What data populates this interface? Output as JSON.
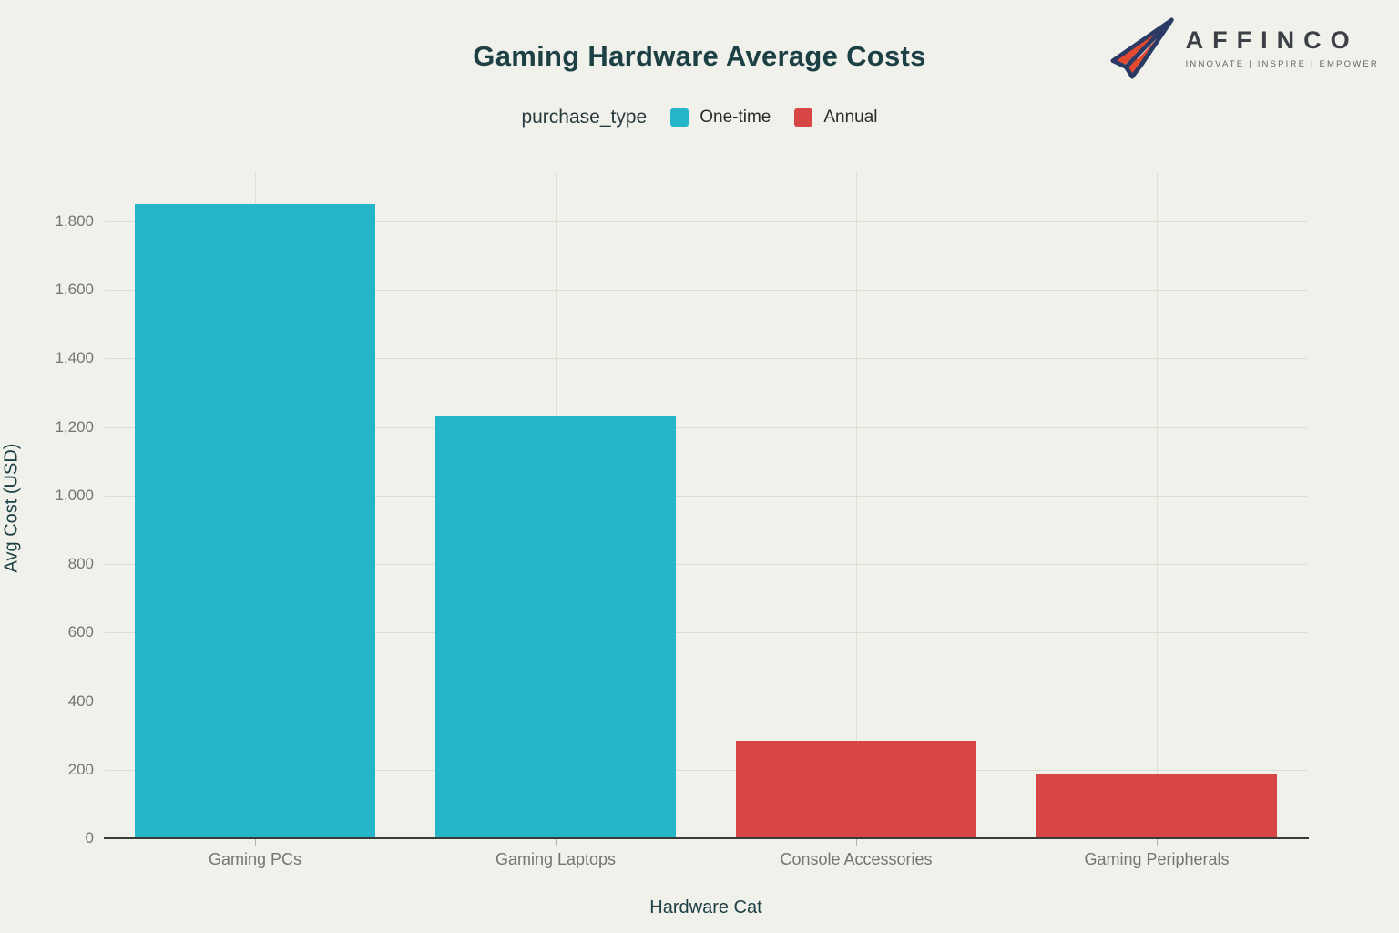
{
  "page": {
    "background": "#f1f1ec"
  },
  "header": {
    "title": "Gaming Hardware Average Costs"
  },
  "logo": {
    "brand": "AFFINCO",
    "tagline": "INNOVATE | INSPIRE | EMPOWER",
    "plane_fill": "#e2492f",
    "plane_outline": "#2b3a64"
  },
  "legend": {
    "title": "purchase_type",
    "items": [
      {
        "label": "One-time",
        "color": "#24b5c9"
      },
      {
        "label": "Annual",
        "color": "#d84545"
      }
    ]
  },
  "chart_data": {
    "type": "bar",
    "title": "Gaming Hardware Average Costs",
    "xlabel": "Hardware Cat",
    "ylabel": "Avg Cost (USD)",
    "legend_title": "purchase_type",
    "legend_position": "top",
    "grid": true,
    "ylim": [
      0,
      1940
    ],
    "ytick_interval": 200,
    "yticks": [
      0,
      200,
      400,
      600,
      800,
      1000,
      1200,
      1400,
      1600,
      1800
    ],
    "categories": [
      "Gaming PCs",
      "Gaming Laptops",
      "Console Accessories",
      "Gaming Peripherals"
    ],
    "series_key": "purchase_type",
    "bars": [
      {
        "category": "Gaming PCs",
        "purchase_type": "One-time",
        "value": 1850,
        "color": "#24b5c9"
      },
      {
        "category": "Gaming Laptops",
        "purchase_type": "One-time",
        "value": 1230,
        "color": "#24b5c9"
      },
      {
        "category": "Console Accessories",
        "purchase_type": "Annual",
        "value": 285,
        "color": "#d84545"
      },
      {
        "category": "Gaming Peripherals",
        "purchase_type": "Annual",
        "value": 190,
        "color": "#d84545"
      }
    ],
    "colors": {
      "One-time": "#24b5c9",
      "Annual": "#d84545"
    }
  }
}
